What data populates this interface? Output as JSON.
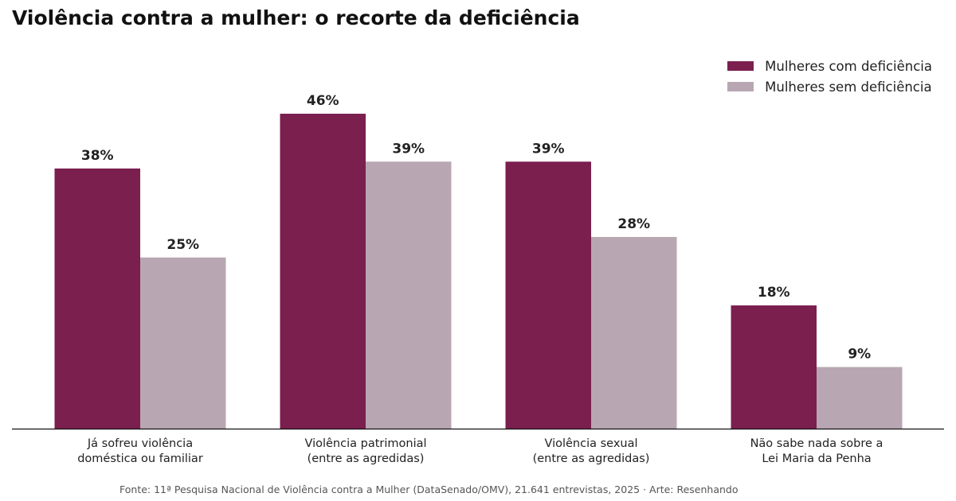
{
  "chart_data": {
    "type": "bar",
    "title": "Violência contra a mulher: o recorte da deficiência",
    "categories": [
      [
        "Já sofreu violência",
        "doméstica ou familiar"
      ],
      [
        "Violência patrimonial",
        "(entre as agredidas)"
      ],
      [
        "Violência sexual",
        "(entre as agredidas)"
      ],
      [
        "Não sabe nada sobre a",
        "Lei Maria da Penha"
      ]
    ],
    "series": [
      {
        "name": "Mulheres com deficiência",
        "values": [
          38,
          46,
          39,
          18
        ],
        "labels": [
          "38%",
          "46%",
          "39%",
          "18%"
        ],
        "color": "#7b1f4f"
      },
      {
        "name": "Mulheres sem deficiência",
        "values": [
          25,
          39,
          28,
          9
        ],
        "labels": [
          "25%",
          "39%",
          "28%",
          "9%"
        ],
        "color": "#b8a7b2"
      }
    ],
    "ylim": [
      0,
      46
    ],
    "xlabel": "",
    "ylabel": "",
    "grid": false,
    "legend_position": "top-right",
    "axis_color": "#111111"
  },
  "source": "Fonte: 11ª Pesquisa Nacional de Violência contra a Mulher (DataSenado/OMV), 21.641 entrevistas, 2025  ·  Arte: Resenhando"
}
